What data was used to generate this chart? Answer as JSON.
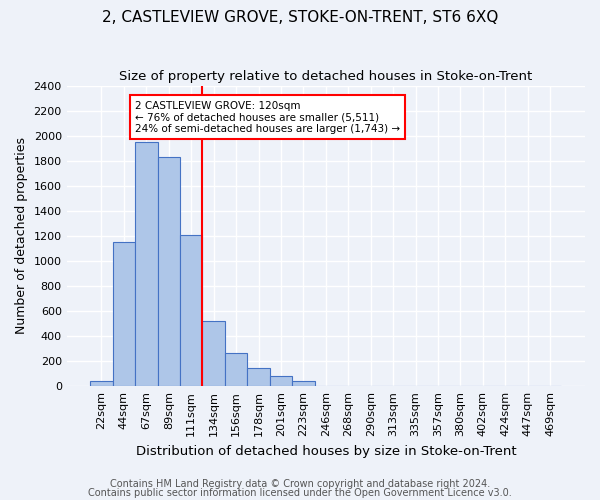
{
  "title": "2, CASTLEVIEW GROVE, STOKE-ON-TRENT, ST6 6XQ",
  "subtitle": "Size of property relative to detached houses in Stoke-on-Trent",
  "xlabel": "Distribution of detached houses by size in Stoke-on-Trent",
  "ylabel": "Number of detached properties",
  "bin_labels": [
    "22sqm",
    "44sqm",
    "67sqm",
    "89sqm",
    "111sqm",
    "134sqm",
    "156sqm",
    "178sqm",
    "201sqm",
    "223sqm",
    "246sqm",
    "268sqm",
    "290sqm",
    "313sqm",
    "335sqm",
    "357sqm",
    "380sqm",
    "402sqm",
    "424sqm",
    "447sqm",
    "469sqm"
  ],
  "bin_values": [
    40,
    1150,
    1950,
    1830,
    1210,
    520,
    265,
    145,
    80,
    40,
    0,
    0,
    0,
    0,
    0,
    0,
    0,
    0,
    0,
    0,
    0
  ],
  "bar_color": "#aec6e8",
  "bar_edge_color": "#4472c4",
  "property_line_x": 4.5,
  "property_line_color": "red",
  "annotation_text": "2 CASTLEVIEW GROVE: 120sqm\n← 76% of detached houses are smaller (5,511)\n24% of semi-detached houses are larger (1,743) →",
  "annotation_box_color": "white",
  "annotation_box_edge": "red",
  "ylim": [
    0,
    2400
  ],
  "yticks": [
    0,
    200,
    400,
    600,
    800,
    1000,
    1200,
    1400,
    1600,
    1800,
    2000,
    2200,
    2400
  ],
  "footer1": "Contains HM Land Registry data © Crown copyright and database right 2024.",
  "footer2": "Contains public sector information licensed under the Open Government Licence v3.0.",
  "background_color": "#eef2f9",
  "grid_color": "white",
  "title_fontsize": 11,
  "subtitle_fontsize": 9.5,
  "xlabel_fontsize": 9.5,
  "ylabel_fontsize": 9,
  "tick_fontsize": 8,
  "footer_fontsize": 7,
  "annotation_fontsize": 7.5
}
